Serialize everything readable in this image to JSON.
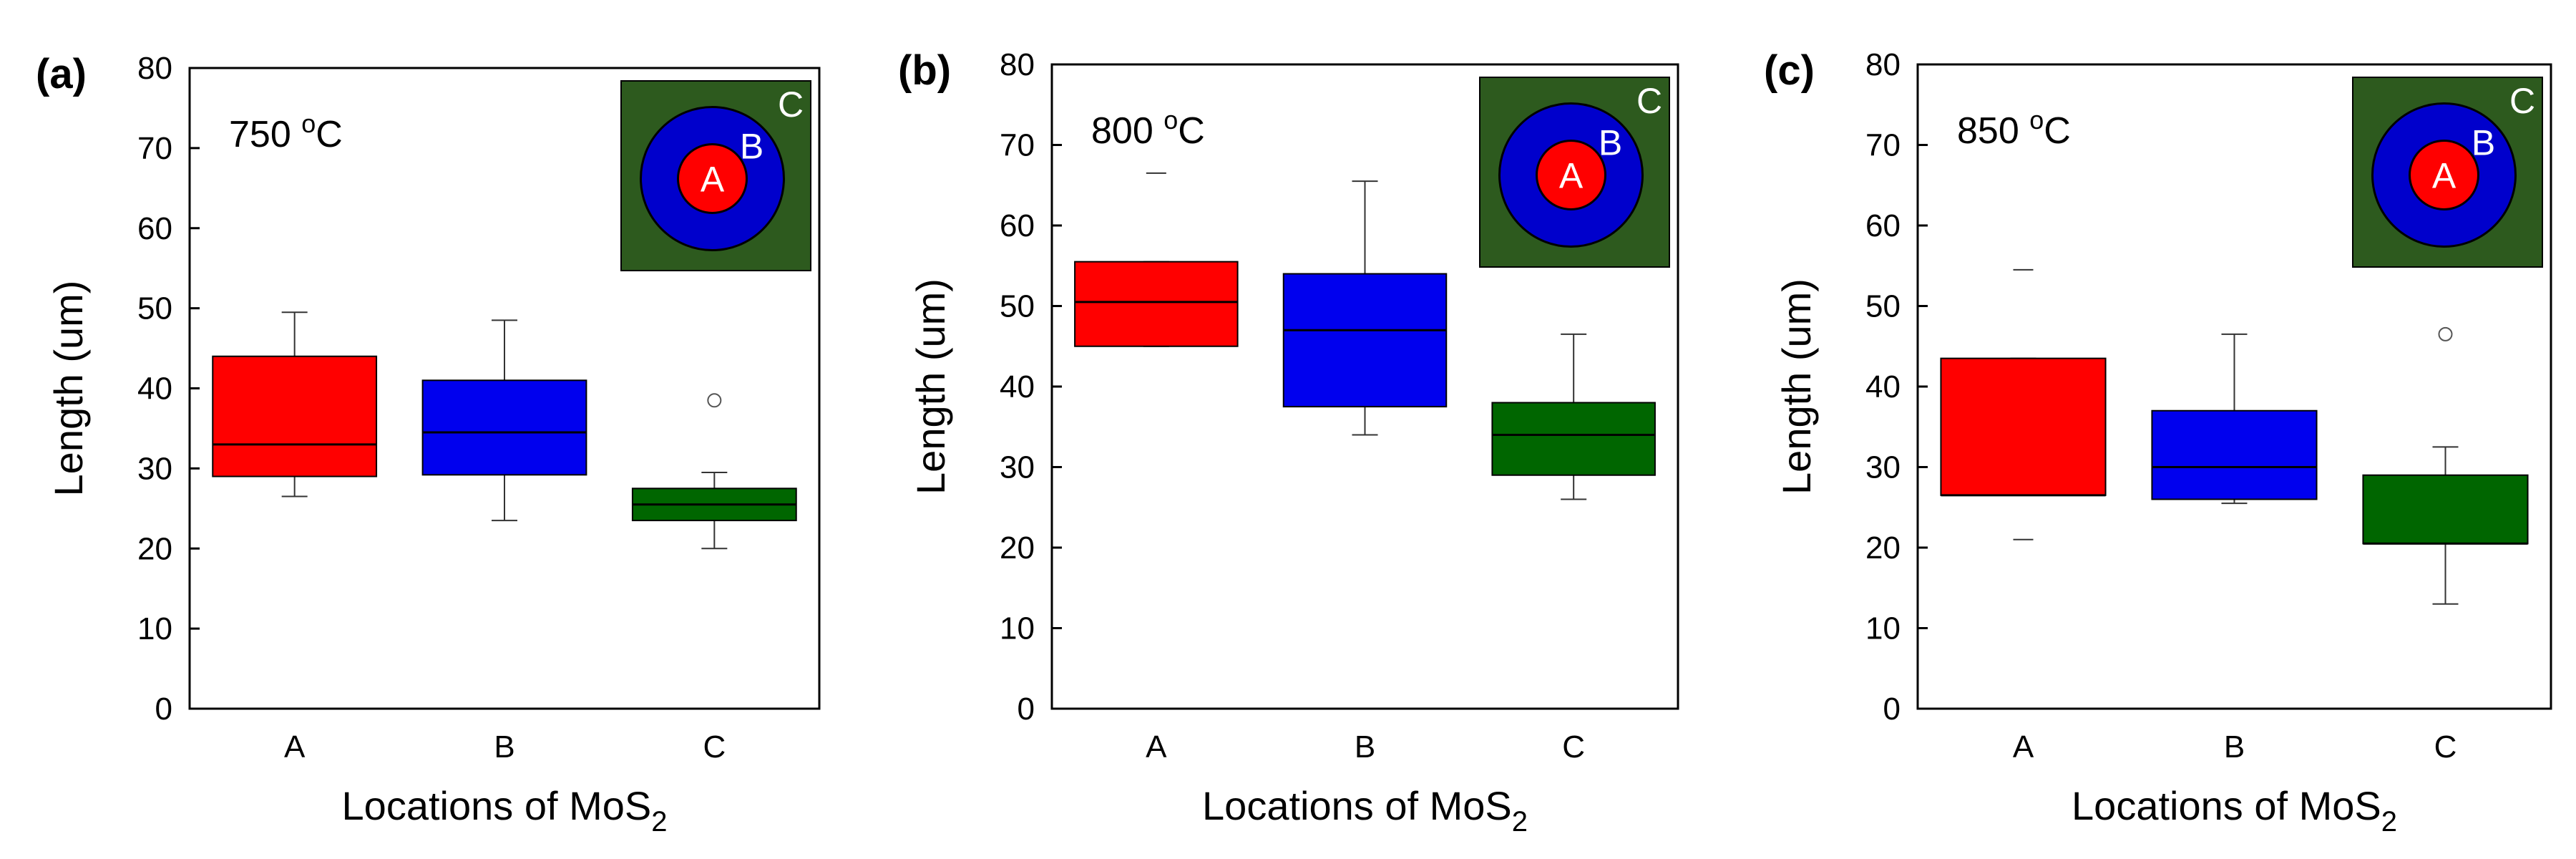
{
  "chart_data": [
    {
      "type": "box",
      "panel_label": "(a)",
      "annotation": "750 °C",
      "annotation_parts": {
        "value": "750 ",
        "sup": "o",
        "unit": "C"
      },
      "ylabel": "Length (um)",
      "xlabel_main": "Locations of MoS",
      "xlabel_sub": "2",
      "ylim": [
        0,
        80
      ],
      "yticks": [
        "0",
        "10",
        "20",
        "30",
        "40",
        "50",
        "60",
        "70",
        "80"
      ],
      "categories": [
        "A",
        "B",
        "C"
      ],
      "boxes": [
        {
          "category": "A",
          "min": 26.5,
          "q1": 29,
          "median": 33,
          "q3": 44,
          "max": 49.5,
          "outliers": [],
          "color": "#ff0000"
        },
        {
          "category": "B",
          "min": 23.5,
          "q1": 29.2,
          "median": 34.5,
          "q3": 41,
          "max": 48.5,
          "outliers": [],
          "color": "#0000ee"
        },
        {
          "category": "C",
          "min": 20,
          "q1": 23.5,
          "median": 25.5,
          "q3": 27.5,
          "max": 29.5,
          "outliers": [
            38.5
          ],
          "color": "#006600"
        }
      ],
      "inset": {
        "labels": [
          "A",
          "B",
          "C"
        ],
        "colors": [
          "#ff0000",
          "#0000cc",
          "#2d5a1e"
        ]
      }
    },
    {
      "type": "box",
      "panel_label": "(b)",
      "annotation": "800 °C",
      "annotation_parts": {
        "value": "800 ",
        "sup": "o",
        "unit": "C"
      },
      "ylabel": "Length (um)",
      "xlabel_main": "Locations of MoS",
      "xlabel_sub": "2",
      "ylim": [
        0,
        80
      ],
      "yticks": [
        "0",
        "10",
        "20",
        "30",
        "40",
        "50",
        "60",
        "70",
        "80"
      ],
      "categories": [
        "A",
        "B",
        "C"
      ],
      "boxes": [
        {
          "category": "A",
          "min": 45,
          "q1": 45,
          "median": 50.5,
          "q3": 55.5,
          "max": 55.5,
          "outliers": [
            66.5
          ],
          "outlier_style": "dash",
          "color": "#ff0000"
        },
        {
          "category": "B",
          "min": 34,
          "q1": 37.5,
          "median": 47,
          "q3": 54,
          "max": 65.5,
          "outliers": [],
          "color": "#0000ee"
        },
        {
          "category": "C",
          "min": 26,
          "q1": 29,
          "median": 34,
          "q3": 38,
          "max": 46.5,
          "outliers": [],
          "color": "#006600"
        }
      ],
      "inset": {
        "labels": [
          "A",
          "B",
          "C"
        ],
        "colors": [
          "#ff0000",
          "#0000cc",
          "#2d5a1e"
        ]
      }
    },
    {
      "type": "box",
      "panel_label": "(c)",
      "annotation": "850 °C",
      "annotation_parts": {
        "value": "850 ",
        "sup": "o",
        "unit": "C"
      },
      "ylabel": "Length (um)",
      "xlabel_main": "Locations of MoS",
      "xlabel_sub": "2",
      "ylim": [
        0,
        80
      ],
      "yticks": [
        "0",
        "10",
        "20",
        "30",
        "40",
        "50",
        "60",
        "70",
        "80"
      ],
      "categories": [
        "A",
        "B",
        "C"
      ],
      "boxes": [
        {
          "category": "A",
          "min": 26.5,
          "q1": 26.5,
          "median": 26.5,
          "q3": 43.5,
          "max": 43.5,
          "outliers": [
            54.5,
            21
          ],
          "outlier_style": "dash",
          "color": "#ff0000"
        },
        {
          "category": "B",
          "min": 25.5,
          "q1": 26,
          "median": 30,
          "q3": 37,
          "max": 46.5,
          "outliers": [],
          "color": "#0000ee"
        },
        {
          "category": "C",
          "min": 13,
          "q1": 20.5,
          "median": 20.5,
          "q3": 29,
          "max": 32.5,
          "outliers": [
            46.5
          ],
          "color": "#006600"
        }
      ],
      "inset": {
        "labels": [
          "A",
          "B",
          "C"
        ],
        "colors": [
          "#ff0000",
          "#0000cc",
          "#2d5a1e"
        ]
      }
    }
  ]
}
